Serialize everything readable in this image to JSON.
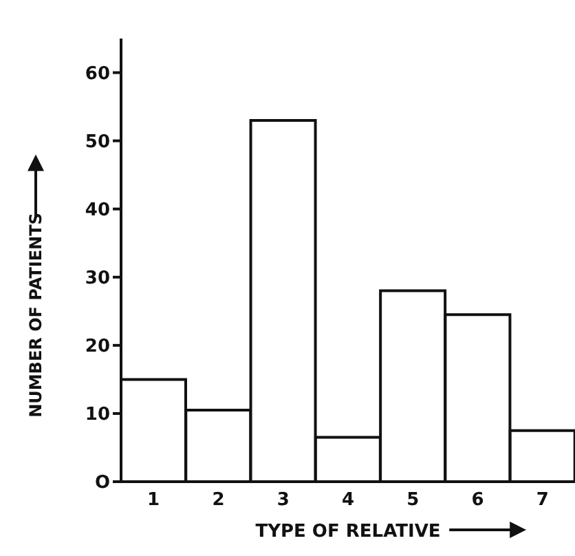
{
  "chart_data": {
    "type": "bar",
    "xlabel": "TYPE OF RELATIVE",
    "ylabel": "NUMBER OF PATIENTS",
    "categories": [
      "1",
      "2",
      "3",
      "4",
      "5",
      "6",
      "7"
    ],
    "values": [
      15,
      10.5,
      53,
      6.5,
      28,
      24.5,
      7.5
    ],
    "color": "#ffffff",
    "ylim": [
      0,
      65
    ],
    "yticks": [
      {
        "value": 0,
        "label": "O"
      },
      10,
      20,
      30,
      40,
      50,
      60
    ]
  }
}
